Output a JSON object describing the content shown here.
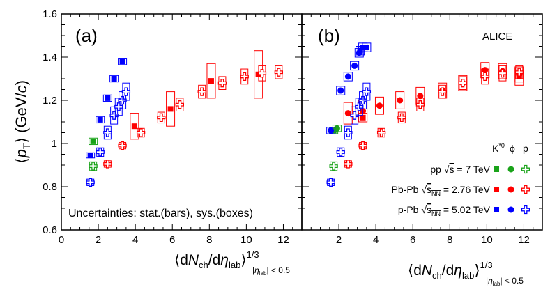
{
  "chart_data": {
    "type": "scatter",
    "title": "",
    "ylabel": "⟨p_T⟩ (GeV/c)",
    "xlabel": "⟨dN_ch/dη_lab⟩^(1/3) |η_lab| < 0.5",
    "xlim": [
      0,
      13
    ],
    "ylim": [
      0.6,
      1.6
    ],
    "x_ticks": [
      "0",
      "2",
      "4",
      "6",
      "8",
      "10",
      "12"
    ],
    "y_ticks": [
      "0.6",
      "0.8",
      "1",
      "1.2",
      "1.4",
      "1.6"
    ],
    "panels": [
      {
        "label": "(a)",
        "annotation": "Uncertainties: stat.(bars), sys.(boxes)",
        "series": [
          {
            "name": "pp K*0",
            "system": "pp",
            "particle": "K*0",
            "marker": "square",
            "color": "#1aa31a",
            "points": [
              [
                1.72,
                1.01
              ]
            ],
            "sys": [
              0.015
            ]
          },
          {
            "name": "pp p",
            "system": "pp",
            "particle": "p",
            "marker": "cross",
            "color": "#1aa31a",
            "points": [
              [
                1.72,
                0.895
              ]
            ],
            "sys": [
              0.02
            ]
          },
          {
            "name": "Pb-Pb K*0",
            "system": "Pb-Pb",
            "particle": "K*0",
            "marker": "square",
            "color": "#ff0000",
            "points": [
              [
                3.95,
                1.08
              ],
              [
                5.9,
                1.16
              ],
              [
                8.1,
                1.29
              ],
              [
                10.65,
                1.32
              ]
            ],
            "sys": [
              0.06,
              0.08,
              0.08,
              0.11
            ]
          },
          {
            "name": "Pb-Pb p",
            "system": "Pb-Pb",
            "particle": "p",
            "marker": "cross",
            "color": "#ff0000",
            "points": [
              [
                2.5,
                0.905
              ],
              [
                3.3,
                0.99
              ],
              [
                4.3,
                1.05
              ],
              [
                5.4,
                1.12
              ],
              [
                6.4,
                1.18
              ],
              [
                7.6,
                1.24
              ],
              [
                8.7,
                1.28
              ],
              [
                9.9,
                1.31
              ],
              [
                10.85,
                1.325
              ],
              [
                11.75,
                1.33
              ]
            ],
            "sys": [
              0.015,
              0.015,
              0.02,
              0.025,
              0.03,
              0.03,
              0.03,
              0.035,
              0.035,
              0.03
            ]
          },
          {
            "name": "p-Pb K*0",
            "system": "p-Pb",
            "particle": "K*0",
            "marker": "square",
            "color": "#0000ff",
            "points": [
              [
                1.57,
                0.945
              ],
              [
                2.1,
                1.11
              ],
              [
                2.5,
                1.21
              ],
              [
                2.85,
                1.3
              ],
              [
                3.3,
                1.38
              ]
            ],
            "sys": [
              0.012,
              0.015,
              0.015,
              0.015,
              0.015
            ]
          },
          {
            "name": "p-Pb p",
            "system": "p-Pb",
            "particle": "p",
            "marker": "cross",
            "color": "#0000ff",
            "points": [
              [
                1.57,
                0.82
              ],
              [
                2.1,
                0.96
              ],
              [
                2.5,
                1.05
              ],
              [
                2.85,
                1.13
              ],
              [
                3.1,
                1.17
              ],
              [
                3.3,
                1.2
              ],
              [
                3.5,
                1.24
              ]
            ],
            "sys": [
              0.015,
              0.02,
              0.03,
              0.04,
              0.04,
              0.04,
              0.04
            ]
          }
        ]
      },
      {
        "label": "(b)",
        "annotation": "ALICE",
        "series": [
          {
            "name": "pp K*0",
            "system": "pp",
            "particle": "K*0",
            "marker": "square",
            "color": "#1aa31a",
            "points": [
              [
                1.72,
                1.06
              ]
            ],
            "sys": [
              0.015
            ]
          },
          {
            "name": "pp phi",
            "system": "pp",
            "particle": "phi",
            "marker": "circle",
            "color": "#1aa31a",
            "points": [
              [
                1.9,
                1.07
              ]
            ],
            "sys": [
              0.015
            ]
          },
          {
            "name": "pp p",
            "system": "pp",
            "particle": "p",
            "marker": "cross",
            "color": "#1aa31a",
            "points": [
              [
                1.72,
                0.895
              ]
            ],
            "sys": [
              0.02
            ]
          },
          {
            "name": "Pb-Pb K*0",
            "system": "Pb-Pb",
            "particle": "K*0",
            "marker": "square",
            "color": "#ff0000",
            "points": [
              [
                3.3,
                1.12
              ],
              [
                11.75,
                1.31
              ]
            ],
            "sys": [
              0.02,
              0.04
            ]
          },
          {
            "name": "Pb-Pb phi",
            "system": "Pb-Pb",
            "particle": "phi",
            "marker": "circle",
            "color": "#ff0000",
            "points": [
              [
                2.5,
                1.14
              ],
              [
                3.3,
                1.15
              ],
              [
                4.2,
                1.175
              ],
              [
                5.3,
                1.2
              ],
              [
                6.4,
                1.22
              ],
              [
                7.6,
                1.245
              ],
              [
                8.7,
                1.28
              ],
              [
                9.9,
                1.34
              ],
              [
                10.85,
                1.335
              ],
              [
                11.75,
                1.32
              ]
            ],
            "sys": [
              0.05,
              0.05,
              0.04,
              0.04,
              0.04,
              0.035,
              0.035,
              0.035,
              0.035,
              0.035
            ]
          },
          {
            "name": "Pb-Pb p",
            "system": "Pb-Pb",
            "particle": "p",
            "marker": "cross",
            "color": "#ff0000",
            "points": [
              [
                2.5,
                0.905
              ],
              [
                3.3,
                0.99
              ],
              [
                4.3,
                1.05
              ],
              [
                5.4,
                1.12
              ],
              [
                6.4,
                1.18
              ],
              [
                7.6,
                1.24
              ],
              [
                8.7,
                1.28
              ],
              [
                9.9,
                1.31
              ],
              [
                10.85,
                1.325
              ],
              [
                11.75,
                1.33
              ]
            ],
            "sys": [
              0.015,
              0.015,
              0.02,
              0.025,
              0.03,
              0.03,
              0.03,
              0.035,
              0.035,
              0.03
            ]
          },
          {
            "name": "p-Pb K*0",
            "system": "p-Pb",
            "particle": "K*0",
            "marker": "square",
            "color": "#0000ff",
            "points": [
              [
                3.15,
                1.43
              ],
              [
                3.3,
                1.445
              ],
              [
                3.5,
                1.445
              ]
            ],
            "sys": [
              0.02,
              0.02,
              0.02
            ]
          },
          {
            "name": "p-Pb phi",
            "system": "p-Pb",
            "particle": "phi",
            "marker": "circle",
            "color": "#0000ff",
            "points": [
              [
                1.57,
                1.06
              ],
              [
                2.1,
                1.245
              ],
              [
                2.5,
                1.31
              ],
              [
                2.85,
                1.36
              ],
              [
                3.1,
                1.42
              ]
            ],
            "sys": [
              0.015,
              0.02,
              0.02,
              0.02,
              0.02
            ]
          },
          {
            "name": "p-Pb p",
            "system": "p-Pb",
            "particle": "p",
            "marker": "cross",
            "color": "#0000ff",
            "points": [
              [
                1.57,
                0.82
              ],
              [
                2.1,
                0.96
              ],
              [
                2.5,
                1.05
              ],
              [
                2.85,
                1.13
              ],
              [
                3.1,
                1.17
              ],
              [
                3.3,
                1.2
              ],
              [
                3.5,
                1.24
              ]
            ],
            "sys": [
              0.015,
              0.02,
              0.03,
              0.04,
              0.04,
              0.04,
              0.04
            ]
          }
        ]
      }
    ],
    "legend": {
      "position": "bottom-right of panel (b)",
      "header": {
        "k": "K",
        "k_sup": "*0",
        "phi": "ϕ",
        "p": "p"
      },
      "rows": [
        {
          "label": "pp √s = 7 TeV",
          "pre": "pp ",
          "rad": "s",
          "post": " = 7 TeV",
          "color": "#1aa31a"
        },
        {
          "label": "Pb-Pb √s_NN = 2.76 TeV",
          "pre": "Pb-Pb ",
          "rad": "s",
          "rad_sub": "NN",
          "post": " = 2.76 TeV",
          "color": "#ff0000"
        },
        {
          "label": "p-Pb √s_NN = 5.02 TeV",
          "pre": "p-Pb ",
          "rad": "s",
          "rad_sub": "NN",
          "post": " = 5.02 TeV",
          "color": "#0000ff"
        }
      ]
    }
  },
  "axis_text": {
    "y_title": {
      "open": "⟨",
      "p": "p",
      "sub": "T",
      "close": "⟩ (GeV/",
      "c": "c",
      "end": ")"
    },
    "x_title": {
      "open": "⟨d",
      "N": "N",
      "sub_ch": "ch",
      "slash": "/d",
      "eta": "η",
      "sub_lab": "lab",
      "close": "⟩",
      "sup": "1/3",
      "lim_open": "|",
      "lim_eta": "η",
      "lim_sub": "lab",
      "lim_close": "| < 0.5"
    }
  }
}
